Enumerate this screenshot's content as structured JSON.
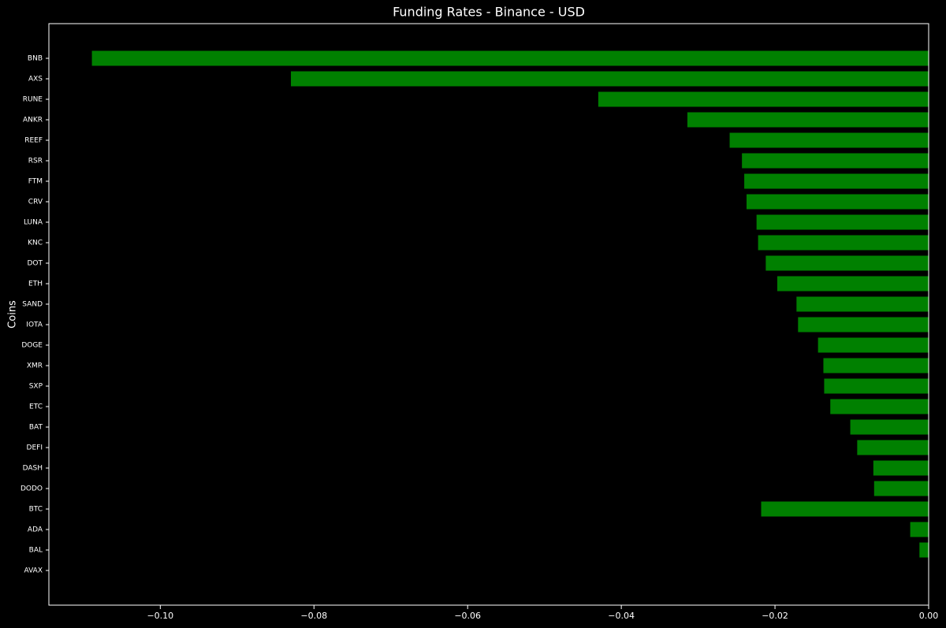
{
  "chart_data": {
    "type": "barh",
    "title": "Funding Rates - Binance - USD",
    "y_label": "Coins",
    "categories": [
      "BNB",
      "AXS",
      "RUNE",
      "ANKR",
      "REEF",
      "RSR",
      "FTM",
      "CRV",
      "LUNA",
      "KNC",
      "DOT",
      "ETH",
      "SAND",
      "IOTA",
      "DOGE",
      "XMR",
      "SXP",
      "ETC",
      "BAT",
      "DEFI",
      "DASH",
      "DODO",
      "BTC",
      "ADA",
      "BAL",
      "AVAX"
    ],
    "values": [
      -0.1089,
      -0.083,
      -0.043,
      -0.0314,
      -0.0259,
      -0.0243,
      -0.024,
      -0.0237,
      -0.0224,
      -0.0222,
      -0.0212,
      -0.0197,
      -0.0172,
      -0.017,
      -0.0144,
      -0.0137,
      -0.0136,
      -0.0128,
      -0.0102,
      -0.0093,
      -0.0072,
      -0.0071,
      -0.0218,
      -0.0024,
      -0.0012,
      0
    ],
    "color": "#008000",
    "xlim": [
      -0.1145,
      0
    ],
    "xticks": [
      {
        "value": -0.1,
        "label": "−0.10"
      },
      {
        "value": -0.08,
        "label": "−0.08"
      },
      {
        "value": -0.06,
        "label": "−0.06"
      },
      {
        "value": -0.04,
        "label": "−0.04"
      },
      {
        "value": -0.02,
        "label": "−0.02"
      },
      {
        "value": 0,
        "label": "0.00"
      }
    ]
  }
}
